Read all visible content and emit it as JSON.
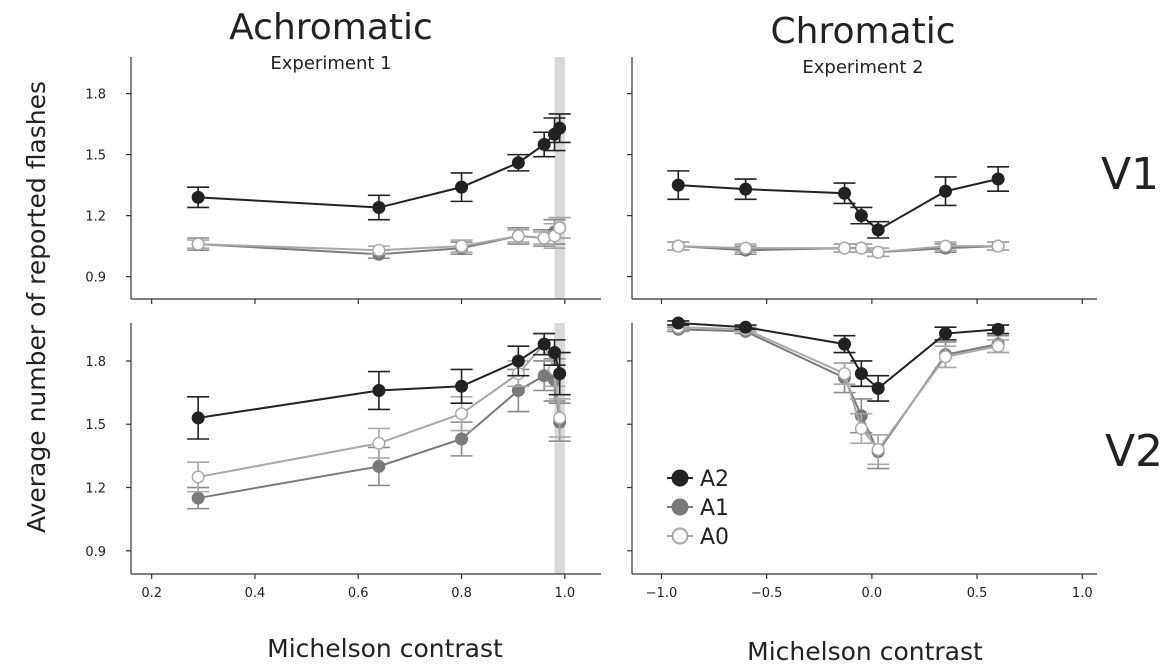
{
  "figure": {
    "ylabel": "Average number of reported flashes",
    "column_titles": [
      {
        "title": "Achromatic",
        "subtitle": "Experiment 1"
      },
      {
        "title": "Chromatic",
        "subtitle": "Experiment 2"
      }
    ],
    "row_labels": [
      "V1",
      "V2"
    ],
    "xlabels": [
      "Michelson contrast",
      "Michelson contrast"
    ]
  },
  "colors": {
    "A2": "#222222",
    "A1": "#7a7a7a",
    "A1_err": "#8a8a8a",
    "A0": "#a8a8a8",
    "A0_fill": "#ffffff",
    "highlight": "#d9d9d9"
  },
  "legend": {
    "placement": "lower-left of bottom-right panel",
    "entries": [
      {
        "name": "A2",
        "style": "filled-dark"
      },
      {
        "name": "A1",
        "style": "filled-gray"
      },
      {
        "name": "A0",
        "style": "open"
      }
    ]
  },
  "chart_data": [
    {
      "type": "line",
      "panel": "achromatic-v1",
      "xlim": [
        0.16,
        1.07
      ],
      "ylim": [
        0.79,
        1.98
      ],
      "xticks": [
        0.2,
        0.4,
        0.6,
        0.8,
        1.0
      ],
      "xtick_labels": [],
      "yticks": [
        0.9,
        1.2,
        1.5,
        1.8
      ],
      "ytick_labels": [
        "0.9",
        "1.2",
        "1.5",
        "1.8"
      ],
      "highlight_band": [
        0.98,
        1.0
      ],
      "series": [
        {
          "name": "A2",
          "x": [
            0.29,
            0.64,
            0.8,
            0.91,
            0.96,
            0.98,
            0.99
          ],
          "y": [
            1.29,
            1.24,
            1.34,
            1.46,
            1.55,
            1.6,
            1.63
          ],
          "err": [
            0.05,
            0.06,
            0.07,
            0.04,
            0.06,
            0.08,
            0.07
          ]
        },
        {
          "name": "A1",
          "x": [
            0.29,
            0.64,
            0.8,
            0.91,
            0.96,
            0.98,
            0.99
          ],
          "y": [
            1.06,
            1.01,
            1.04,
            1.1,
            1.09,
            1.12,
            1.14
          ],
          "err": [
            0.03,
            0.02,
            0.03,
            0.04,
            0.04,
            0.06,
            0.05
          ]
        },
        {
          "name": "A0",
          "x": [
            0.29,
            0.64,
            0.8,
            0.91,
            0.96,
            0.98,
            0.99
          ],
          "y": [
            1.06,
            1.03,
            1.05,
            1.1,
            1.09,
            1.1,
            1.14
          ],
          "err": [
            0.02,
            0.02,
            0.03,
            0.03,
            0.03,
            0.06,
            0.05
          ]
        }
      ]
    },
    {
      "type": "line",
      "panel": "chromatic-v1",
      "xlim": [
        -1.14,
        1.07
      ],
      "ylim": [
        0.79,
        1.98
      ],
      "xticks": [
        -1.0,
        -0.5,
        0.0,
        0.5,
        1.0
      ],
      "xtick_labels": [],
      "yticks": [
        0.9,
        1.2,
        1.5,
        1.8
      ],
      "ytick_labels": [],
      "series": [
        {
          "name": "A2",
          "x": [
            -0.92,
            -0.6,
            -0.13,
            -0.05,
            0.03,
            0.35,
            0.6
          ],
          "y": [
            1.35,
            1.33,
            1.31,
            1.2,
            1.13,
            1.32,
            1.38
          ],
          "err": [
            0.07,
            0.05,
            0.05,
            0.04,
            0.04,
            0.07,
            0.06
          ]
        },
        {
          "name": "A1",
          "x": [
            -0.92,
            -0.6,
            -0.13,
            -0.05,
            0.03,
            0.35,
            0.6
          ],
          "y": [
            1.05,
            1.03,
            1.04,
            1.04,
            1.02,
            1.04,
            1.05
          ],
          "err": [
            0.02,
            0.02,
            0.02,
            0.02,
            0.02,
            0.02,
            0.02
          ]
        },
        {
          "name": "A0",
          "x": [
            -0.92,
            -0.6,
            -0.13,
            -0.05,
            0.03,
            0.35,
            0.6
          ],
          "y": [
            1.05,
            1.04,
            1.04,
            1.04,
            1.02,
            1.05,
            1.05
          ],
          "err": [
            0.02,
            0.02,
            0.02,
            0.02,
            0.02,
            0.02,
            0.02
          ]
        }
      ]
    },
    {
      "type": "line",
      "panel": "achromatic-v2",
      "xlim": [
        0.16,
        1.07
      ],
      "ylim": [
        0.79,
        1.98
      ],
      "xticks": [
        0.2,
        0.4,
        0.6,
        0.8,
        1.0
      ],
      "xtick_labels": [
        "0.2",
        "0.4",
        "0.6",
        "0.8",
        "1.0"
      ],
      "yticks": [
        0.9,
        1.2,
        1.5,
        1.8
      ],
      "ytick_labels": [
        "0.9",
        "1.2",
        "1.5",
        "1.8"
      ],
      "highlight_band": [
        0.98,
        1.0
      ],
      "series": [
        {
          "name": "A2",
          "x": [
            0.29,
            0.64,
            0.8,
            0.91,
            0.96,
            0.98,
            0.99
          ],
          "y": [
            1.53,
            1.66,
            1.68,
            1.8,
            1.88,
            1.84,
            1.74
          ],
          "err": [
            0.1,
            0.09,
            0.08,
            0.07,
            0.05,
            0.06,
            0.1
          ]
        },
        {
          "name": "A1",
          "x": [
            0.29,
            0.64,
            0.8,
            0.91,
            0.96,
            0.98,
            0.99
          ],
          "y": [
            1.15,
            1.3,
            1.43,
            1.66,
            1.73,
            1.71,
            1.51
          ],
          "err": [
            0.05,
            0.09,
            0.08,
            0.1,
            0.07,
            0.1,
            0.09
          ]
        },
        {
          "name": "A0",
          "x": [
            0.29,
            0.64,
            0.8,
            0.91,
            0.96,
            0.98,
            0.99
          ],
          "y": [
            1.25,
            1.41,
            1.55,
            1.74,
            1.88,
            1.76,
            1.53
          ],
          "err": [
            0.07,
            0.07,
            0.08,
            0.06,
            0.05,
            0.08,
            0.09
          ]
        }
      ]
    },
    {
      "type": "line",
      "panel": "chromatic-v2",
      "xlim": [
        -1.14,
        1.07
      ],
      "ylim": [
        0.79,
        1.98
      ],
      "xticks": [
        -1.0,
        -0.5,
        0.0,
        0.5,
        1.0
      ],
      "xtick_labels": [
        "−1.0",
        "−0.5",
        "0.0",
        "0.5",
        "1.0"
      ],
      "yticks": [
        0.9,
        1.2,
        1.5,
        1.8
      ],
      "ytick_labels": [],
      "series": [
        {
          "name": "A2",
          "x": [
            -0.92,
            -0.6,
            -0.13,
            -0.05,
            0.03,
            0.35,
            0.6
          ],
          "y": [
            1.98,
            1.96,
            1.88,
            1.74,
            1.67,
            1.93,
            1.95
          ],
          "err": [
            0.01,
            0.01,
            0.04,
            0.06,
            0.06,
            0.03,
            0.02
          ]
        },
        {
          "name": "A1",
          "x": [
            -0.92,
            -0.6,
            -0.13,
            -0.05,
            0.03,
            0.35,
            0.6
          ],
          "y": [
            1.95,
            1.94,
            1.72,
            1.54,
            1.37,
            1.83,
            1.88
          ],
          "err": [
            0.01,
            0.01,
            0.07,
            0.08,
            0.08,
            0.06,
            0.04
          ]
        },
        {
          "name": "A0",
          "x": [
            -0.92,
            -0.6,
            -0.13,
            -0.05,
            0.03,
            0.35,
            0.6
          ],
          "y": [
            1.96,
            1.95,
            1.74,
            1.48,
            1.38,
            1.82,
            1.87
          ],
          "err": [
            0.01,
            0.01,
            0.05,
            0.07,
            0.07,
            0.05,
            0.03
          ]
        }
      ]
    }
  ]
}
